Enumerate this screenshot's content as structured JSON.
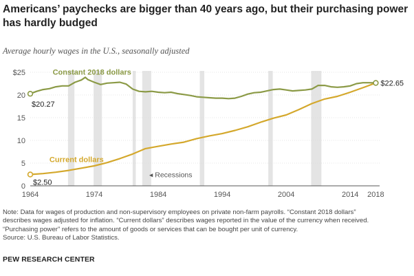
{
  "chart_data": {
    "type": "line",
    "title": "Americans’ paychecks are bigger than 40 years ago, but their purchasing power has hardly budged",
    "subtitle": "Average hourly wages in the U.S., seasonally adjusted",
    "x_ticks": [
      "1964",
      "1974",
      "1984",
      "1994",
      "2004",
      "2014",
      "2018"
    ],
    "y_ticks": [
      "0",
      "5",
      "10",
      "15",
      "20",
      "$25"
    ],
    "xlim": [
      1964,
      2018.6
    ],
    "ylim": [
      0,
      25
    ],
    "grid": "horizontal",
    "recessions_label": "◂ Recessions",
    "recessions": [
      [
        1969.9,
        1970.9
      ],
      [
        1973.9,
        1975.2
      ],
      [
        1980.0,
        1980.5
      ],
      [
        1981.5,
        1982.9
      ],
      [
        1990.5,
        1991.2
      ],
      [
        2001.2,
        2001.9
      ],
      [
        2007.9,
        2009.5
      ]
    ],
    "series": [
      {
        "name": "Constant 2018 dollars",
        "color": "#8b9a46",
        "start_label": "$20.27",
        "end_label": "$22.65",
        "x": [
          1964,
          1965,
          1966,
          1967,
          1968,
          1969,
          1970,
          1971,
          1972,
          1972.6,
          1973,
          1974,
          1975,
          1976,
          1977,
          1978,
          1979,
          1980,
          1981,
          1982,
          1983,
          1984,
          1985,
          1986,
          1987,
          1988,
          1989,
          1990,
          1991,
          1992,
          1993,
          1994,
          1995,
          1996,
          1997,
          1998,
          1999,
          2000,
          2001,
          2002,
          2003,
          2004,
          2005,
          2006,
          2007,
          2008,
          2009,
          2010,
          2011,
          2012,
          2013,
          2014,
          2015,
          2016,
          2017,
          2018
        ],
        "values": [
          20.27,
          20.8,
          21.2,
          21.4,
          21.8,
          22.0,
          22.0,
          22.8,
          23.3,
          23.9,
          23.4,
          22.8,
          22.3,
          22.6,
          22.7,
          22.8,
          22.4,
          21.3,
          20.8,
          20.7,
          20.8,
          20.6,
          20.5,
          20.6,
          20.3,
          20.1,
          19.9,
          19.6,
          19.5,
          19.4,
          19.3,
          19.3,
          19.2,
          19.3,
          19.7,
          20.2,
          20.5,
          20.6,
          20.9,
          21.2,
          21.3,
          21.1,
          20.9,
          21.0,
          21.1,
          21.3,
          22.1,
          22.1,
          21.8,
          21.7,
          21.8,
          22.0,
          22.5,
          22.7,
          22.7,
          22.65
        ]
      },
      {
        "name": "Current dollars",
        "color": "#d4a82c",
        "start_label": "$2.50",
        "x": [
          1964,
          1966,
          1968,
          1970,
          1972,
          1974,
          1976,
          1978,
          1980,
          1982,
          1984,
          1986,
          1988,
          1990,
          1992,
          1994,
          1996,
          1998,
          2000,
          2002,
          2004,
          2006,
          2008,
          2010,
          2012,
          2014,
          2016,
          2018
        ],
        "values": [
          2.5,
          2.7,
          3.0,
          3.4,
          3.9,
          4.4,
          5.1,
          6.0,
          7.0,
          8.2,
          8.7,
          9.2,
          9.6,
          10.4,
          11.0,
          11.5,
          12.2,
          13.0,
          14.0,
          14.9,
          15.6,
          16.8,
          18.1,
          19.1,
          19.7,
          20.6,
          21.6,
          22.65
        ]
      }
    ]
  },
  "note_lines": [
    "Note: Data for wages of production and non-supervisory employees on private non-farm payrolls. “Constant 2018 dollars”",
    "describes wages adjusted for inflation. “Current dollars” describes wages reported in the value of the currency when received.",
    "“Purchasing power” refers to the amount of goods or services that can be bought per unit of currency.",
    "Source: U.S. Bureau of Labor Statistics."
  ],
  "footer": "PEW RESEARCH CENTER"
}
